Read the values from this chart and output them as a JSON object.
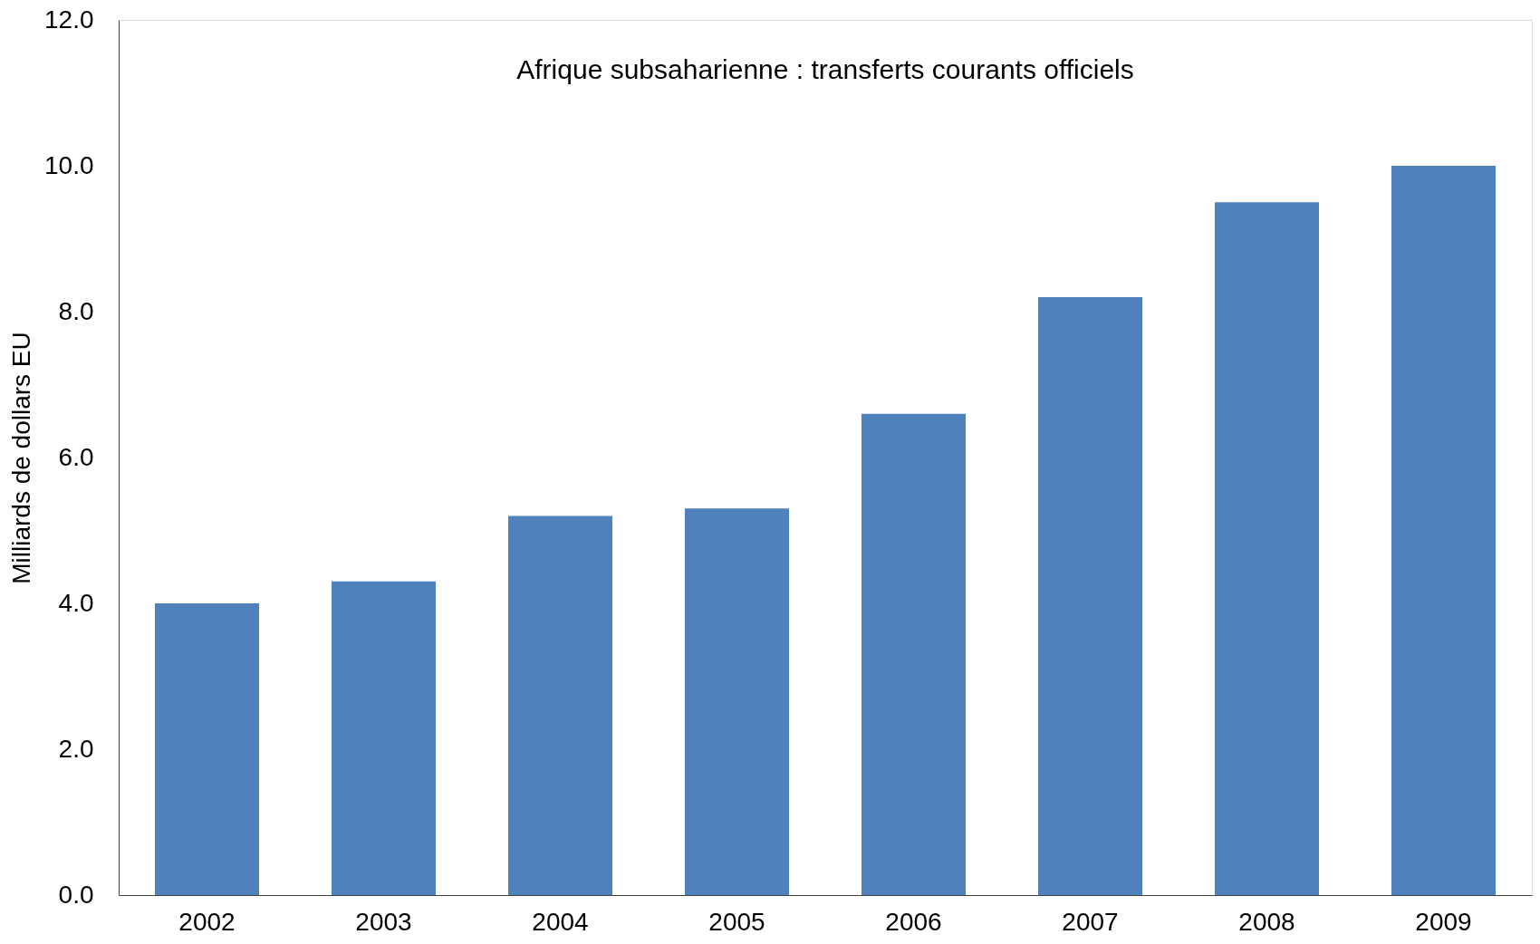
{
  "chart_data": {
    "type": "bar",
    "title": "Afrique subsaharienne : transferts courants officiels",
    "ylabel": "Milliards de dollars EU",
    "categories": [
      "2002",
      "2003",
      "2004",
      "2005",
      "2006",
      "2007",
      "2008",
      "2009"
    ],
    "values": [
      4.0,
      4.3,
      5.2,
      5.3,
      6.6,
      8.2,
      9.5,
      10.0
    ],
    "color": "#4f81bd",
    "ylim": [
      0,
      12
    ],
    "yticks": [
      {
        "value": 0,
        "label": "0.0"
      },
      {
        "value": 2,
        "label": "2.0"
      },
      {
        "value": 4,
        "label": "4.0"
      },
      {
        "value": 6,
        "label": "6.0"
      },
      {
        "value": 8,
        "label": "8.0"
      },
      {
        "value": 10,
        "label": "10.0"
      },
      {
        "value": 12,
        "label": "12.0"
      }
    ]
  }
}
